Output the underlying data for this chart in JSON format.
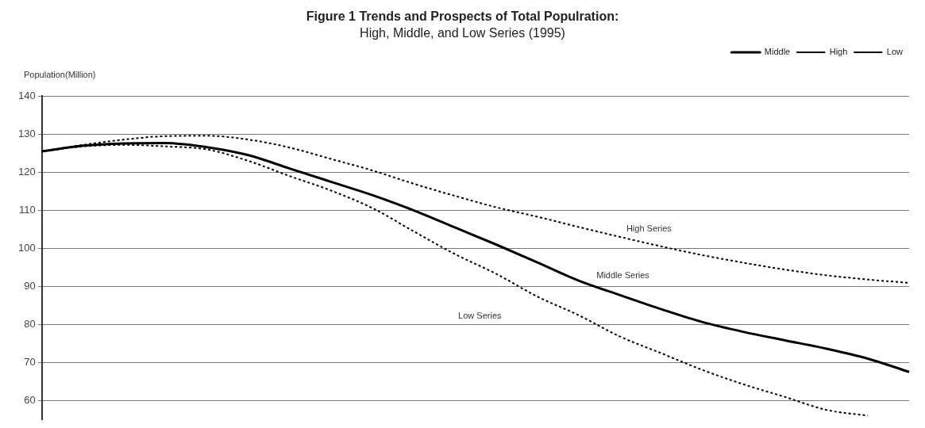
{
  "chart_data": {
    "type": "line",
    "title": "Figure 1 Trends and Prospects of Total Populration:",
    "subtitle": "High, Middle, and Low Series (1995)",
    "ylabel": "Population(Million)",
    "categories": [
      null,
      null,
      null,
      null,
      null,
      null,
      null,
      null,
      null,
      null,
      null,
      null,
      null,
      null,
      null,
      null,
      null,
      null,
      null,
      null,
      null,
      null
    ],
    "series": [
      {
        "name": "Middle",
        "color": "#000000",
        "line_style": "solid",
        "values": [
          125.5,
          127,
          127.6,
          127.7,
          126.6,
          124.5,
          121,
          117.5,
          114,
          110,
          105.5,
          101,
          96.3,
          91.5,
          87.7,
          84,
          80.6,
          78,
          75.8,
          73.6,
          71,
          67.5
        ]
      },
      {
        "name": "High",
        "color": "#000000",
        "line_style": "dashed",
        "values": [
          125.5,
          127.2,
          128.6,
          129.5,
          129.6,
          128.6,
          126.5,
          123.5,
          120.5,
          117,
          113.8,
          110.8,
          108.3,
          105.6,
          103,
          100.5,
          98.2,
          96.2,
          94.4,
          92.9,
          91.8,
          90.9
        ]
      },
      {
        "name": "Low",
        "color": "#000000",
        "line_style": "dashed",
        "values": [
          125.5,
          126.8,
          127.2,
          126.8,
          126,
          123,
          119,
          115.2,
          110.6,
          104.5,
          98.5,
          93.3,
          87.3,
          82.4,
          76.8,
          72.4,
          68,
          64.2,
          60.9,
          57.5,
          56,
          null
        ]
      }
    ],
    "ylim": [
      55,
      140
    ],
    "yticks": [
      60,
      70,
      80,
      90,
      100,
      110,
      120,
      130,
      140
    ],
    "grid": "y",
    "legend": "top right",
    "tick_labels": "y",
    "marker": "none",
    "annotations": [
      "High Series",
      "Middle Series",
      "Low Series"
    ]
  }
}
